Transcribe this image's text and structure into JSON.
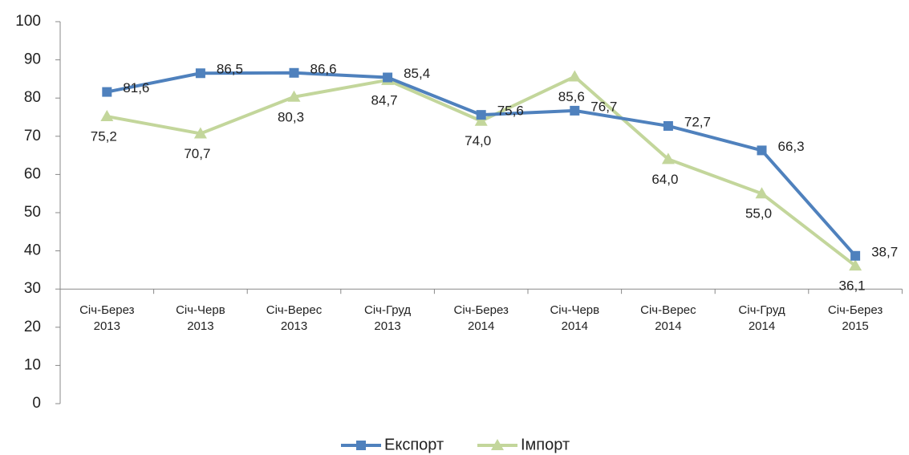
{
  "chart_data": {
    "type": "line",
    "categories": [
      "Січ-Берез\n2013",
      "Січ-Черв\n2013",
      "Січ-Верес\n2013",
      "Січ-Груд\n2013",
      "Січ-Берез\n2014",
      "Січ-Черв\n2014",
      "Січ-Верес\n2014",
      "Січ-Груд\n2014",
      "Січ-Берез\n2015"
    ],
    "series": [
      {
        "name": "Експорт",
        "color": "#4f81bd",
        "marker": "square",
        "values": [
          81.6,
          86.5,
          86.6,
          85.4,
          75.6,
          76.7,
          72.7,
          66.3,
          38.7
        ],
        "value_labels": [
          "81,6",
          "86,5",
          "86,6",
          "85,4",
          "75,6",
          "76,7",
          "72,7",
          "66,3",
          "38,7"
        ]
      },
      {
        "name": "Імпорт",
        "color": "#c3d69b",
        "marker": "triangle",
        "values": [
          75.2,
          70.7,
          80.3,
          84.7,
          74.0,
          85.6,
          64.0,
          55.0,
          36.1
        ],
        "value_labels": [
          "75,2",
          "70,7",
          "80,3",
          "84,7",
          "74,0",
          "85,6",
          "64,0",
          "55,0",
          "36,1"
        ]
      }
    ],
    "ylim": [
      0,
      100
    ],
    "yticks": [
      0,
      10,
      20,
      30,
      40,
      50,
      60,
      70,
      80,
      90,
      100
    ],
    "x_axis_crosses": 30,
    "grid": false,
    "legend": "bottom"
  }
}
